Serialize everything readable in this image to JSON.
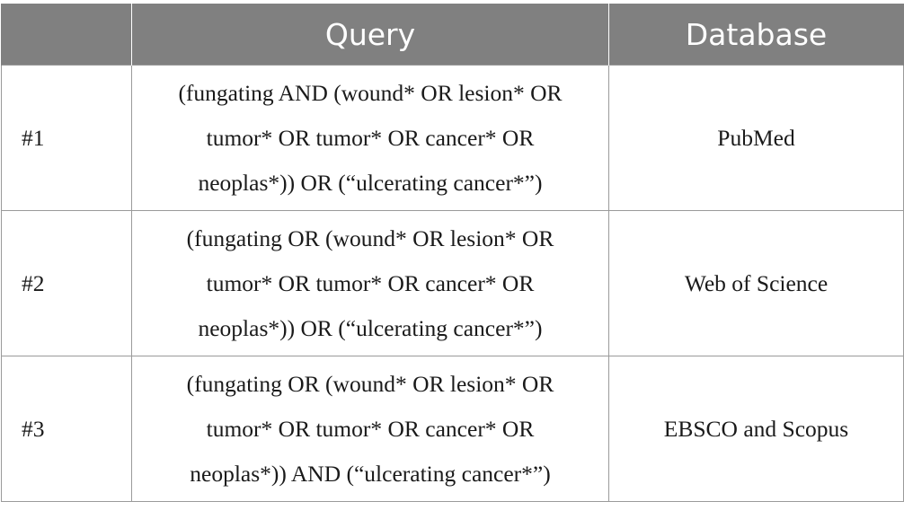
{
  "table": {
    "headers": [
      "",
      "Query",
      "Database"
    ],
    "rows": [
      {
        "id": "#1",
        "query_lines": [
          "(fungating AND (wound* OR lesion* OR",
          "tumor* OR tumor* OR cancer* OR",
          "neoplas*)) OR (“ulcerating cancer*”)"
        ],
        "database": "PubMed"
      },
      {
        "id": "#2",
        "query_lines": [
          "(fungating OR (wound* OR lesion* OR",
          "tumor* OR tumor* OR cancer* OR",
          "neoplas*)) OR (“ulcerating cancer*”)"
        ],
        "database": "Web of Science"
      },
      {
        "id": "#3",
        "query_lines": [
          "(fungating OR (wound* OR lesion* OR",
          "tumor* OR tumor* OR cancer* OR",
          "neoplas*)) AND (“ulcerating cancer*”)"
        ],
        "database": "EBSCO and Scopus"
      }
    ]
  },
  "colors": {
    "header_bg": "#808080",
    "header_text": "#ffffff",
    "border": "#9a9a9a",
    "body_text": "#1a1a1a"
  }
}
